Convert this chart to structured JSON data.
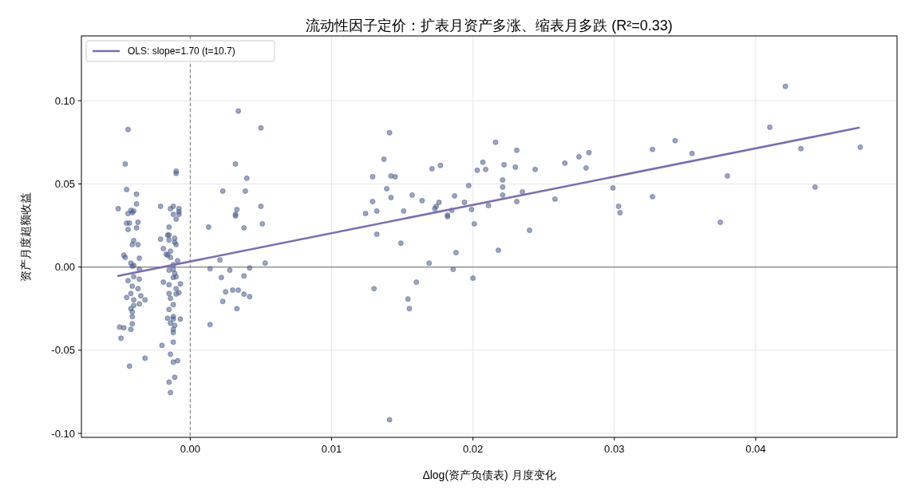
{
  "chart_data": {
    "type": "scatter",
    "title": "流动性因子定价：扩表月资产多涨、缩表月多跌 (R²=0.33)",
    "xlabel": "Δlog(资产负债表) 月度变化",
    "ylabel": "资产月度超额收益",
    "xlim": [
      -0.0077,
      0.05
    ],
    "ylim": [
      -0.1024,
      0.139
    ],
    "xticks": [
      {
        "value": 0,
        "label": "0.00"
      },
      {
        "value": 0.01,
        "label": "0.01"
      },
      {
        "value": 0.02,
        "label": "0.02"
      },
      {
        "value": 0.03,
        "label": "0.03"
      },
      {
        "value": 0.04,
        "label": "0.04"
      }
    ],
    "yticks": [
      {
        "value": -0.1,
        "label": "-0.10"
      },
      {
        "value": -0.05,
        "label": "-0.05"
      },
      {
        "value": 0,
        "label": "0.00"
      },
      {
        "value": 0.05,
        "label": "0.05"
      },
      {
        "value": 0.1,
        "label": "0.10"
      }
    ],
    "grid": true,
    "legend": "top left",
    "marker": "circle",
    "ref_lines": [
      {
        "axis": "y",
        "value": 0,
        "color": "#808080",
        "line_style": "solid"
      },
      {
        "axis": "x",
        "value": 0,
        "color": "#808080",
        "line_style": "dashed"
      }
    ],
    "series": [
      {
        "color": "#4c5d8c",
        "x": [
          0.0275,
          0.0282,
          0.028,
          0.0265,
          0.0258,
          0.0299,
          0.0303,
          0.0304,
          0.0327,
          0.0327,
          0.0343,
          0.0355,
          0.038,
          0.0375,
          0.041,
          0.0421,
          0.0432,
          0.0442,
          0.0474,
          0.0141,
          0.0137,
          0.0129,
          0.0142,
          0.0145,
          0.0139,
          0.0129,
          0.0142,
          0.0124,
          0.0132,
          0.0132,
          0.0149,
          0.0151,
          0.0157,
          0.0164,
          0.0171,
          0.0177,
          0.0173,
          0.0174,
          0.0176,
          0.0182,
          0.0182,
          0.0185,
          0.0187,
          0.0194,
          0.0197,
          0.0199,
          0.0201,
          0.0203,
          0.0207,
          0.0209,
          0.0216,
          0.0211,
          0.0222,
          0.0221,
          0.0221,
          0.0221,
          0.0218,
          0.0188,
          0.0169,
          0.0186,
          0.02,
          0.016,
          0.013,
          0.0154,
          0.0155,
          0.0231,
          0.023,
          0.0244,
          0.0235,
          0.0231,
          0.024,
          0.0141,
          0.0034,
          0.005,
          0.0032,
          0.004,
          0.0023,
          0.0039,
          0.005,
          0.0033,
          0.0032,
          0.0032,
          0.0013,
          0.0038,
          0.0051,
          0.0021,
          0.0014,
          0.0028,
          0.0042,
          0.0053,
          0.0022,
          0.0038,
          0.0025,
          0.003,
          0.0034,
          0.0038,
          0.0042,
          0.0023,
          0.0033,
          0.0014,
          -0.0044,
          -0.0046,
          -0.0045,
          -0.0038,
          -0.0038,
          -0.0051,
          -0.0042,
          -0.004,
          -0.0044,
          -0.0041,
          -0.0037,
          -0.0045,
          -0.0043,
          -0.0038,
          -0.0044,
          -0.004,
          -0.0041,
          -0.0037,
          -0.0047,
          -0.0046,
          -0.0036,
          -0.0042,
          -0.004,
          -0.0041,
          -0.0036,
          -0.004,
          -0.0044,
          -0.0036,
          -0.0041,
          -0.0037,
          -0.0042,
          -0.0045,
          -0.0035,
          -0.004,
          -0.0032,
          -0.0036,
          -0.004,
          -0.0042,
          -0.0041,
          -0.0041,
          -0.0041,
          -0.005,
          -0.0047,
          -0.0042,
          -0.0049,
          -0.0032,
          -0.0043,
          -0.001,
          -0.001,
          -0.0021,
          -0.0012,
          -0.0008,
          -0.0014,
          -0.0008,
          -0.0012,
          -0.0008,
          -0.001,
          -0.0015,
          -0.0015,
          -0.0016,
          -0.0011,
          -0.0021,
          -0.0015,
          -0.0011,
          -0.001,
          -0.0019,
          -0.0014,
          -0.0017,
          -0.0016,
          -0.0014,
          -0.0009,
          -0.0012,
          -0.0015,
          -0.0012,
          -0.0011,
          -0.0012,
          -0.001,
          -0.0019,
          -0.0015,
          -0.0007,
          -0.001,
          -0.0015,
          -0.001,
          -0.0008,
          -0.0014,
          -0.0012,
          -0.0015,
          -0.0016,
          -0.0012,
          -0.0012,
          -0.0007,
          -0.0014,
          -0.0011,
          -0.0012,
          -0.0012,
          -0.0012,
          -0.002,
          -0.0014,
          -0.0009,
          -0.0012,
          -0.0011,
          -0.0015,
          -0.0014
        ],
        "values": [
          0.0663,
          0.0688,
          0.0596,
          0.0625,
          0.0409,
          0.0476,
          0.0365,
          0.0327,
          0.0707,
          0.0423,
          0.076,
          0.0683,
          0.0548,
          0.0269,
          0.0841,
          0.1087,
          0.0712,
          0.0481,
          0.0721,
          0.0808,
          0.0649,
          0.0543,
          0.0548,
          0.0543,
          0.0471,
          0.0394,
          0.0418,
          0.0322,
          0.0337,
          0.0197,
          0.0144,
          0.0337,
          0.0433,
          0.0399,
          0.0591,
          0.0611,
          0.0351,
          0.0365,
          0.0389,
          0.0313,
          0.0303,
          0.0341,
          0.0428,
          0.0389,
          0.049,
          0.0346,
          0.026,
          0.0582,
          0.063,
          0.0587,
          0.075,
          0.037,
          0.0615,
          0.0524,
          0.0481,
          0.0433,
          0.0101,
          0.0087,
          0.0024,
          -0.0014,
          -0.0067,
          -0.0091,
          -0.013,
          -0.0192,
          -0.025,
          0.0702,
          0.0601,
          0.0587,
          0.0452,
          0.0394,
          0.0221,
          -0.0918,
          0.0938,
          0.0837,
          0.062,
          0.0534,
          0.0457,
          0.0457,
          0.0365,
          0.0346,
          0.0317,
          0.0308,
          0.024,
          0.0236,
          0.026,
          0.0043,
          -0.001,
          -0.0019,
          -0.0005,
          0.0024,
          -0.0063,
          -0.0053,
          -0.0149,
          -0.0139,
          -0.0139,
          -0.0163,
          -0.0178,
          -0.0207,
          -0.025,
          -0.0346,
          0.0827,
          0.062,
          0.0466,
          0.0438,
          0.038,
          0.0351,
          0.0341,
          0.0337,
          0.0322,
          0.0327,
          0.0269,
          0.0264,
          0.0264,
          0.0236,
          0.0226,
          0.0159,
          0.0135,
          0.0135,
          0.0072,
          0.0058,
          0.0053,
          0.0024,
          0.001,
          0.0005,
          -0.0014,
          -0.0058,
          -0.0082,
          -0.0072,
          -0.0115,
          -0.013,
          -0.0159,
          -0.0183,
          -0.0173,
          -0.0197,
          -0.0197,
          -0.0221,
          -0.0231,
          -0.025,
          -0.0269,
          -0.0298,
          -0.0341,
          -0.0361,
          -0.0365,
          -0.0375,
          -0.0428,
          -0.0548,
          -0.0596,
          0.0577,
          0.0563,
          0.0365,
          0.0365,
          0.0351,
          0.0351,
          0.0332,
          0.0317,
          0.0317,
          0.0288,
          0.024,
          0.0192,
          0.0192,
          0.0173,
          0.0168,
          0.0163,
          0.0149,
          0.0135,
          0.0111,
          0.0096,
          0.0077,
          0.0072,
          0.0058,
          0.0038,
          0.0014,
          -0.0019,
          -0.0014,
          -0.0038,
          -0.0063,
          -0.0058,
          -0.0091,
          -0.0106,
          -0.0101,
          -0.013,
          -0.0159,
          -0.0163,
          -0.0154,
          -0.0188,
          -0.0226,
          -0.0255,
          -0.0308,
          -0.0298,
          -0.0313,
          -0.0313,
          -0.0337,
          -0.0351,
          -0.0375,
          -0.0394,
          -0.0452,
          -0.0471,
          -0.0524,
          -0.0563,
          -0.0572,
          -0.0663,
          -0.0692,
          -0.0755
        ]
      },
      {
        "type": "line",
        "name": "OLS: slope=1.70 (t=10.7)",
        "color": "#7b6db0",
        "x": [
          -0.0051,
          0.0473
        ],
        "values": [
          -0.0053,
          0.0838
        ],
        "marker": "none"
      }
    ]
  }
}
